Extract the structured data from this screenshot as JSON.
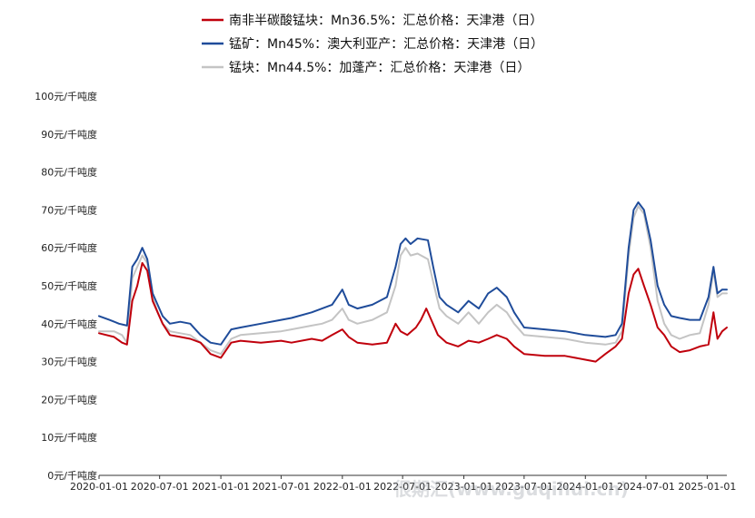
{
  "chart_data": {
    "type": "line",
    "series": [
      {
        "name": "南非半碳酸锰块：Mn36.5%：汇总价格：天津港（日）",
        "color": "#c0000c",
        "points": [
          [
            "2020-01-01",
            37.5
          ],
          [
            "2020-02-15",
            36.5
          ],
          [
            "2020-03-10",
            35
          ],
          [
            "2020-03-25",
            34.5
          ],
          [
            "2020-04-10",
            46
          ],
          [
            "2020-04-25",
            50
          ],
          [
            "2020-05-10",
            56
          ],
          [
            "2020-05-25",
            54
          ],
          [
            "2020-06-10",
            46
          ],
          [
            "2020-06-25",
            43
          ],
          [
            "2020-07-10",
            40
          ],
          [
            "2020-08-01",
            37
          ],
          [
            "2020-09-01",
            36.5
          ],
          [
            "2020-10-01",
            36
          ],
          [
            "2020-11-01",
            35
          ],
          [
            "2020-12-01",
            32
          ],
          [
            "2021-01-01",
            31
          ],
          [
            "2021-02-01",
            35
          ],
          [
            "2021-03-01",
            35.5
          ],
          [
            "2021-05-01",
            35
          ],
          [
            "2021-07-01",
            35.5
          ],
          [
            "2021-08-01",
            35
          ],
          [
            "2021-10-01",
            36
          ],
          [
            "2021-11-01",
            35.5
          ],
          [
            "2021-12-01",
            37
          ],
          [
            "2022-01-01",
            38.5
          ],
          [
            "2022-01-20",
            36.5
          ],
          [
            "2022-02-15",
            35
          ],
          [
            "2022-04-01",
            34.5
          ],
          [
            "2022-05-15",
            35
          ],
          [
            "2022-06-10",
            40
          ],
          [
            "2022-06-25",
            38
          ],
          [
            "2022-07-15",
            37
          ],
          [
            "2022-08-10",
            39
          ],
          [
            "2022-08-25",
            41
          ],
          [
            "2022-09-10",
            44
          ],
          [
            "2022-09-25",
            41
          ],
          [
            "2022-10-15",
            37
          ],
          [
            "2022-11-10",
            35
          ],
          [
            "2022-12-15",
            34
          ],
          [
            "2023-01-15",
            35.5
          ],
          [
            "2023-02-15",
            35
          ],
          [
            "2023-03-15",
            36
          ],
          [
            "2023-04-10",
            37
          ],
          [
            "2023-05-10",
            36
          ],
          [
            "2023-06-01",
            34
          ],
          [
            "2023-07-01",
            32
          ],
          [
            "2023-09-01",
            31.5
          ],
          [
            "2023-11-01",
            31.5
          ],
          [
            "2024-01-01",
            30.5
          ],
          [
            "2024-02-01",
            30
          ],
          [
            "2024-03-01",
            32
          ],
          [
            "2024-04-01",
            34
          ],
          [
            "2024-04-20",
            36
          ],
          [
            "2024-05-10",
            48
          ],
          [
            "2024-05-25",
            53
          ],
          [
            "2024-06-08",
            54.5
          ],
          [
            "2024-06-25",
            50
          ],
          [
            "2024-07-15",
            45
          ],
          [
            "2024-08-05",
            39
          ],
          [
            "2024-08-25",
            37
          ],
          [
            "2024-09-15",
            34
          ],
          [
            "2024-10-10",
            32.5
          ],
          [
            "2024-11-10",
            33
          ],
          [
            "2024-12-10",
            34
          ],
          [
            "2025-01-05",
            34.5
          ],
          [
            "2025-01-20",
            43
          ],
          [
            "2025-02-01",
            36
          ],
          [
            "2025-02-15",
            38
          ],
          [
            "2025-03-01",
            39
          ]
        ]
      },
      {
        "name": "锰矿：Mn45%：澳大利亚产：汇总价格：天津港（日）",
        "color": "#1f4c9a",
        "points": [
          [
            "2020-01-01",
            42
          ],
          [
            "2020-02-01",
            41
          ],
          [
            "2020-03-01",
            40
          ],
          [
            "2020-03-25",
            39.5
          ],
          [
            "2020-04-10",
            55
          ],
          [
            "2020-04-25",
            57
          ],
          [
            "2020-05-10",
            60
          ],
          [
            "2020-05-25",
            57
          ],
          [
            "2020-06-10",
            48
          ],
          [
            "2020-06-25",
            45
          ],
          [
            "2020-07-10",
            42
          ],
          [
            "2020-08-01",
            40
          ],
          [
            "2020-09-01",
            40.5
          ],
          [
            "2020-10-01",
            40
          ],
          [
            "2020-11-01",
            37
          ],
          [
            "2020-12-01",
            35
          ],
          [
            "2021-01-01",
            34.5
          ],
          [
            "2021-02-01",
            38.5
          ],
          [
            "2021-03-01",
            39
          ],
          [
            "2021-05-01",
            40
          ],
          [
            "2021-07-01",
            41
          ],
          [
            "2021-08-01",
            41.5
          ],
          [
            "2021-10-01",
            43
          ],
          [
            "2021-11-01",
            44
          ],
          [
            "2021-12-01",
            45
          ],
          [
            "2022-01-01",
            49
          ],
          [
            "2022-01-20",
            45
          ],
          [
            "2022-02-15",
            44
          ],
          [
            "2022-04-01",
            45
          ],
          [
            "2022-05-15",
            47
          ],
          [
            "2022-06-10",
            55
          ],
          [
            "2022-06-25",
            61
          ],
          [
            "2022-07-10",
            62.5
          ],
          [
            "2022-07-25",
            61
          ],
          [
            "2022-08-15",
            62.5
          ],
          [
            "2022-09-15",
            62
          ],
          [
            "2022-10-01",
            55
          ],
          [
            "2022-10-20",
            47
          ],
          [
            "2022-11-10",
            45
          ],
          [
            "2022-12-15",
            43
          ],
          [
            "2023-01-15",
            46
          ],
          [
            "2023-02-15",
            44
          ],
          [
            "2023-03-15",
            48
          ],
          [
            "2023-04-10",
            49.5
          ],
          [
            "2023-05-10",
            47
          ],
          [
            "2023-06-01",
            43
          ],
          [
            "2023-07-01",
            39
          ],
          [
            "2023-09-01",
            38.5
          ],
          [
            "2023-11-01",
            38
          ],
          [
            "2024-01-01",
            37
          ],
          [
            "2024-03-01",
            36.5
          ],
          [
            "2024-04-01",
            37
          ],
          [
            "2024-04-20",
            40
          ],
          [
            "2024-05-10",
            60
          ],
          [
            "2024-05-25",
            70
          ],
          [
            "2024-06-08",
            72
          ],
          [
            "2024-06-25",
            70
          ],
          [
            "2024-07-15",
            62
          ],
          [
            "2024-08-05",
            50
          ],
          [
            "2024-08-25",
            45
          ],
          [
            "2024-09-15",
            42
          ],
          [
            "2024-10-10",
            41.5
          ],
          [
            "2024-11-10",
            41
          ],
          [
            "2024-12-10",
            41
          ],
          [
            "2025-01-05",
            47
          ],
          [
            "2025-01-20",
            55
          ],
          [
            "2025-02-01",
            48
          ],
          [
            "2025-02-15",
            49
          ],
          [
            "2025-03-01",
            49
          ]
        ]
      },
      {
        "name": "锰块：Mn44.5%：加蓬产：汇总价格：天津港（日）",
        "color": "#c4c4c4",
        "points": [
          [
            "2020-01-01",
            38
          ],
          [
            "2020-02-15",
            38
          ],
          [
            "2020-03-10",
            37
          ],
          [
            "2020-03-25",
            35
          ],
          [
            "2020-04-10",
            52
          ],
          [
            "2020-04-25",
            55
          ],
          [
            "2020-05-10",
            58
          ],
          [
            "2020-05-25",
            56
          ],
          [
            "2020-06-10",
            47
          ],
          [
            "2020-06-25",
            43
          ],
          [
            "2020-07-10",
            40
          ],
          [
            "2020-08-01",
            38
          ],
          [
            "2020-09-01",
            37.5
          ],
          [
            "2020-10-01",
            37
          ],
          [
            "2020-11-01",
            35
          ],
          [
            "2020-12-01",
            33
          ],
          [
            "2021-01-01",
            32
          ],
          [
            "2021-02-01",
            36
          ],
          [
            "2021-03-01",
            37
          ],
          [
            "2021-05-01",
            37.5
          ],
          [
            "2021-07-01",
            38
          ],
          [
            "2021-08-01",
            38.5
          ],
          [
            "2021-10-01",
            39.5
          ],
          [
            "2021-11-01",
            40
          ],
          [
            "2021-12-01",
            41
          ],
          [
            "2022-01-01",
            44
          ],
          [
            "2022-01-20",
            41
          ],
          [
            "2022-02-15",
            40
          ],
          [
            "2022-04-01",
            41
          ],
          [
            "2022-05-15",
            43
          ],
          [
            "2022-06-10",
            50
          ],
          [
            "2022-06-25",
            58
          ],
          [
            "2022-07-10",
            60
          ],
          [
            "2022-07-25",
            58
          ],
          [
            "2022-08-15",
            58.5
          ],
          [
            "2022-09-15",
            57
          ],
          [
            "2022-10-01",
            51
          ],
          [
            "2022-10-20",
            44
          ],
          [
            "2022-11-10",
            42
          ],
          [
            "2022-12-15",
            40
          ],
          [
            "2023-01-15",
            43
          ],
          [
            "2023-02-15",
            40
          ],
          [
            "2023-03-15",
            43
          ],
          [
            "2023-04-10",
            45
          ],
          [
            "2023-05-10",
            43
          ],
          [
            "2023-06-01",
            40
          ],
          [
            "2023-07-01",
            37
          ],
          [
            "2023-09-01",
            36.5
          ],
          [
            "2023-11-01",
            36
          ],
          [
            "2024-01-01",
            35
          ],
          [
            "2024-03-01",
            34.5
          ],
          [
            "2024-04-01",
            35
          ],
          [
            "2024-04-20",
            38
          ],
          [
            "2024-05-10",
            58
          ],
          [
            "2024-05-25",
            68
          ],
          [
            "2024-06-08",
            71
          ],
          [
            "2024-06-25",
            69
          ],
          [
            "2024-07-15",
            60
          ],
          [
            "2024-08-05",
            46
          ],
          [
            "2024-08-25",
            40
          ],
          [
            "2024-09-15",
            37
          ],
          [
            "2024-10-10",
            36
          ],
          [
            "2024-11-10",
            37
          ],
          [
            "2024-12-10",
            37.5
          ],
          [
            "2025-01-05",
            45
          ],
          [
            "2025-01-20",
            54
          ],
          [
            "2025-02-01",
            47
          ],
          [
            "2025-02-15",
            48
          ],
          [
            "2025-03-01",
            48
          ]
        ]
      }
    ],
    "ylim": [
      0,
      100
    ],
    "yticks": [
      0,
      10,
      20,
      30,
      40,
      50,
      60,
      70,
      80,
      90,
      100
    ],
    "ytick_labels": [
      "0元/千吨度",
      "10元/千吨度",
      "20元/千吨度",
      "30元/千吨度",
      "40元/千吨度",
      "50元/千吨度",
      "60元/千吨度",
      "70元/千吨度",
      "80元/千吨度",
      "90元/千吨度",
      "100元/千吨度"
    ],
    "xlim": [
      "2020-01-01",
      "2025-03-01"
    ],
    "xticks": [
      "2020-01-01",
      "2020-07-01",
      "2021-01-01",
      "2021-07-01",
      "2022-01-01",
      "2022-07-01",
      "2023-01-01",
      "2023-07-01",
      "2024-01-01",
      "2024-07-01",
      "2025-01-01"
    ],
    "xtick_labels": [
      "2020-01-01",
      "2020-07-01",
      "2021-01-01",
      "2021-07-01",
      "2022-01-01",
      "2022-07-01",
      "2023-01-01",
      "2023-07-01",
      "2024-01-01",
      "2024-07-01",
      "2025-01-01"
    ],
    "legend_position": "top",
    "grid": false
  },
  "watermark": "很期汇(www.guqihui.cn)"
}
